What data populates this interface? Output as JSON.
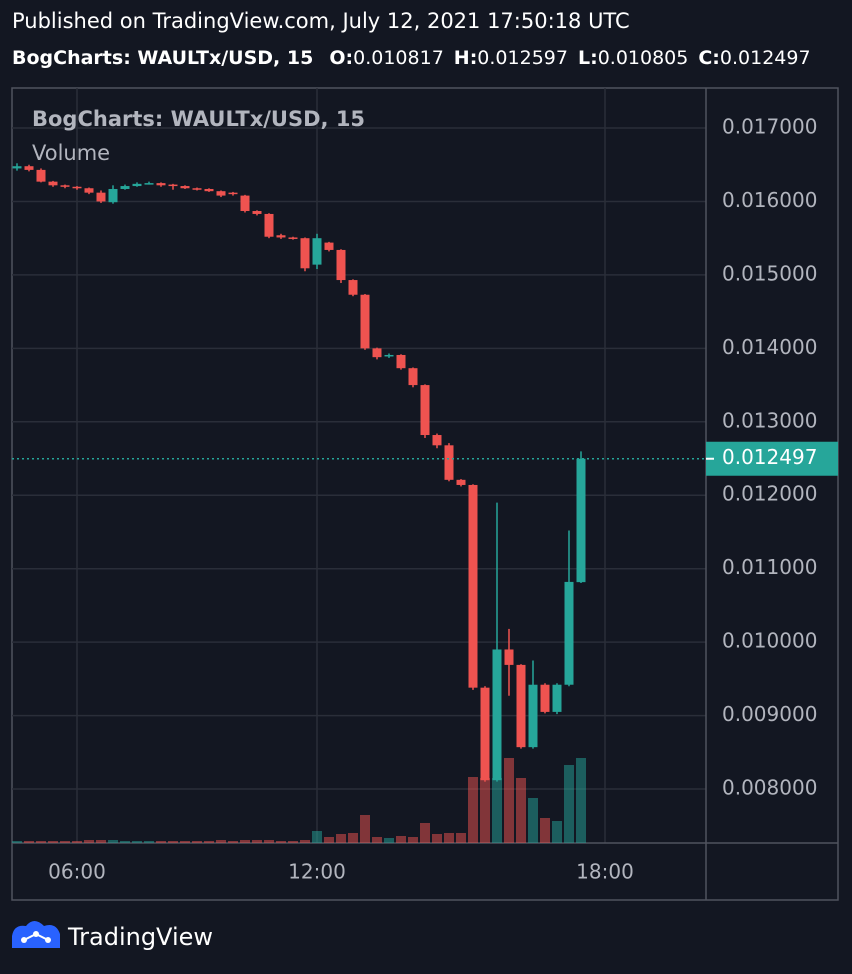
{
  "header": {
    "published": "Published on TradingView.com, July 12, 2021 17:50:18 UTC",
    "symbol": "BogCharts: WAULTx/USD, 15",
    "ohlc": [
      {
        "label": "O:",
        "value": "0.010817"
      },
      {
        "label": "H:",
        "value": "0.012597"
      },
      {
        "label": "L:",
        "value": "0.010805"
      },
      {
        "label": "C:",
        "value": "0.012497"
      }
    ]
  },
  "footer": {
    "brand": "TradingView"
  },
  "chart_data": {
    "type": "candlestick",
    "title": "BogCharts: WAULTx/USD, 15",
    "subtitle": "Volume",
    "categories": [
      null,
      null,
      null,
      null,
      null,
      "06:00",
      null,
      null,
      null,
      null,
      null,
      null,
      null,
      null,
      null,
      null,
      null,
      null,
      null,
      null,
      null,
      null,
      null,
      null,
      null,
      "12:00",
      null,
      null,
      null,
      null,
      null,
      null,
      null,
      null,
      null,
      null,
      null,
      null,
      null,
      null,
      null,
      null,
      null,
      null,
      null,
      null,
      null,
      null,
      null,
      "18:00",
      null,
      null,
      null,
      null,
      null,
      null,
      null,
      null
    ],
    "open": [
      0.01645,
      0.01648,
      0.01643,
      0.01627,
      0.01622,
      0.0162,
      0.01618,
      0.01612,
      0.01599,
      0.01617,
      0.01621,
      0.01624,
      0.01625,
      0.01623,
      0.01621,
      0.01618,
      0.01617,
      0.01614,
      0.01612,
      0.01608,
      0.01587,
      0.01583,
      0.01554,
      0.01551,
      0.0155,
      0.01514,
      0.01544,
      0.01534,
      0.01493,
      0.01473,
      0.014,
      0.01389,
      0.01391,
      0.01373,
      0.0135,
      0.01282,
      0.01268,
      0.01221,
      0.01214,
      0.00938,
      0.00812,
      0.0099,
      0.00969,
      0.00857,
      0.00942,
      0.00905,
      0.00942,
      0.010817,
      null,
      null,
      null,
      null,
      null,
      null,
      null,
      null,
      null,
      null
    ],
    "high": [
      0.01652,
      0.0165,
      0.01645,
      0.01628,
      0.01623,
      0.01621,
      0.01619,
      0.01615,
      0.01622,
      0.01623,
      0.01626,
      0.01627,
      0.01626,
      0.01624,
      0.01622,
      0.01619,
      0.01618,
      0.01615,
      0.01613,
      0.01609,
      0.01588,
      0.01584,
      0.01556,
      0.01552,
      0.01551,
      0.01556,
      0.01545,
      0.01535,
      0.01494,
      0.01474,
      0.01401,
      0.01393,
      0.01392,
      0.01374,
      0.01351,
      0.01284,
      0.01271,
      0.01222,
      0.01215,
      0.0094,
      0.0119,
      0.01018,
      0.0097,
      0.00975,
      0.00944,
      0.00944,
      0.01152,
      0.012597,
      null,
      null,
      null,
      null,
      null,
      null,
      null,
      null,
      null,
      null
    ],
    "low": [
      0.01642,
      0.01641,
      0.01626,
      0.0162,
      0.01618,
      0.01616,
      0.0161,
      0.01598,
      0.01597,
      0.01616,
      0.0162,
      0.01623,
      0.0162,
      0.01616,
      0.01617,
      0.01615,
      0.01613,
      0.01606,
      0.01608,
      0.01585,
      0.01581,
      0.0155,
      0.01549,
      0.01548,
      0.01505,
      0.01508,
      0.01532,
      0.01489,
      0.01471,
      0.01398,
      0.01385,
      0.01387,
      0.01371,
      0.01347,
      0.01278,
      0.01264,
      0.01219,
      0.01212,
      0.00935,
      0.0081,
      0.0081,
      0.00927,
      0.00855,
      0.00855,
      0.00903,
      0.00902,
      0.0094,
      0.010805,
      null,
      null,
      null,
      null,
      null,
      null,
      null,
      null,
      null,
      null
    ],
    "close": [
      0.01648,
      0.01643,
      0.01627,
      0.01622,
      0.0162,
      0.01618,
      0.01612,
      0.016,
      0.01617,
      0.01621,
      0.01624,
      0.01625,
      0.01622,
      0.01621,
      0.01618,
      0.01617,
      0.01614,
      0.01608,
      0.0161,
      0.01587,
      0.01583,
      0.01552,
      0.01551,
      0.0155,
      0.01509,
      0.0155,
      0.01534,
      0.01493,
      0.01473,
      0.014,
      0.01388,
      0.01391,
      0.01373,
      0.0135,
      0.01282,
      0.01268,
      0.01221,
      0.01214,
      0.00938,
      0.00812,
      0.0099,
      0.00969,
      0.00857,
      0.00942,
      0.00905,
      0.00942,
      0.01082,
      0.012497,
      null,
      null,
      null,
      null,
      null,
      null,
      null,
      null,
      null,
      null
    ],
    "volume": [
      2,
      2,
      2,
      2,
      2,
      2,
      3,
      3,
      3,
      2,
      2,
      2,
      2,
      2,
      2,
      2,
      2,
      3,
      2,
      3,
      3,
      3,
      2,
      2,
      3,
      12,
      6,
      9,
      10,
      28,
      6,
      5,
      7,
      6,
      20,
      9,
      10,
      10,
      66,
      65,
      65,
      85,
      65,
      45,
      25,
      22,
      78,
      85,
      null,
      null,
      null,
      null,
      null,
      null,
      null,
      null,
      null,
      null
    ],
    "up_color": "#26a69a",
    "down_color": "#ef5350",
    "ylim": [
      0.007265,
      0.017545
    ],
    "yticks": [
      {
        "value": 0.017,
        "label": "0.017000"
      },
      {
        "value": 0.016,
        "label": "0.016000"
      },
      {
        "value": 0.015,
        "label": "0.015000"
      },
      {
        "value": 0.014,
        "label": "0.014000"
      },
      {
        "value": 0.013,
        "label": "0.013000"
      },
      {
        "value": 0.012,
        "label": "0.012000"
      },
      {
        "value": 0.011,
        "label": "0.011000"
      },
      {
        "value": 0.01,
        "label": "0.010000"
      },
      {
        "value": 0.009,
        "label": "0.009000"
      },
      {
        "value": 0.008,
        "label": "0.008000"
      }
    ],
    "grid": true,
    "last_price": 0.012497
  }
}
